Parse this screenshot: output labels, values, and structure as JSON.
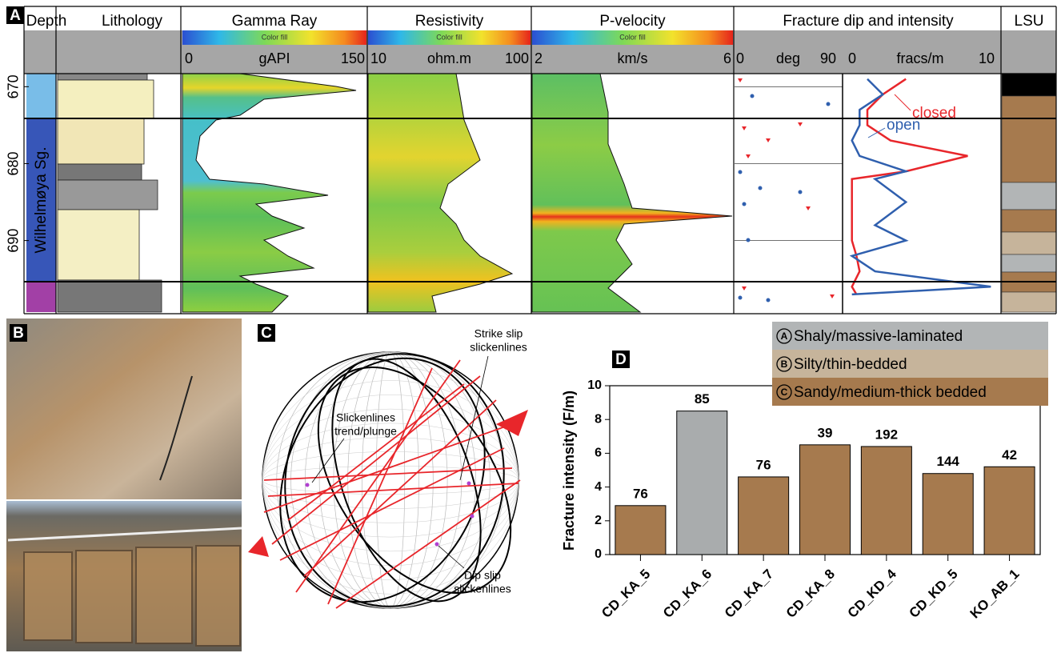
{
  "panel_a": {
    "label": "A",
    "depth_title": "Depth",
    "lithology_title": "Lithology",
    "lsu_title": "LSU",
    "unit": "Wilhelmøya Sg.",
    "depth_lim": [
      668.3,
      699.3
    ],
    "depth_ticks": [
      670,
      680,
      690
    ],
    "tracks": [
      {
        "title": "Gamma Ray",
        "fill_label": "Color fill",
        "scale": [
          0,
          150
        ],
        "unit": "gAPI"
      },
      {
        "title": "Resistivity",
        "fill_label": "Color fill",
        "scale": [
          10,
          100
        ],
        "unit": "ohm.m"
      },
      {
        "title": "P-velocity",
        "fill_label": "Color fill",
        "scale": [
          2,
          6
        ],
        "unit": "km/s"
      }
    ],
    "fracture": {
      "title": "Fracture dip and intensity",
      "dip_scale": [
        0,
        90
      ],
      "dip_unit": "deg",
      "intensity_scale": [
        0,
        10
      ],
      "intensity_unit": "fracs/m",
      "depth": [
        669,
        671,
        673,
        675,
        677,
        679,
        681,
        682,
        685,
        688,
        690,
        692,
        694,
        696,
        697
      ],
      "series": [
        {
          "name": "closed",
          "color": "#e8262b",
          "values": [
            4,
            2.5,
            1.5,
            1.5,
            3,
            8,
            4,
            0.5,
            0.5,
            0.5,
            0.5,
            0.8,
            1,
            0.5,
            0.8
          ]
        },
        {
          "name": "open",
          "color": "#2f5fae",
          "values": [
            1.5,
            2.5,
            1,
            1,
            0.5,
            1,
            4,
            2,
            4,
            2,
            4,
            0.5,
            2,
            9.5,
            0.5
          ]
        }
      ]
    }
  },
  "panel_b": {
    "label": "B"
  },
  "panel_c": {
    "label": "C",
    "strike_slip": [
      "Strike slip",
      "slickenlines"
    ],
    "trend_plunge": [
      "Slickenlines",
      "trend/plunge"
    ],
    "dip_slip": [
      "Dip slip",
      "slickenlines"
    ]
  },
  "chart_data": {
    "type": "bar",
    "label": "D",
    "y_label": "Fracture intensity (F/m)",
    "categories": [
      "CD_KA_5",
      "CD_KA_6",
      "CD_KA_7",
      "CD_KA_8",
      "CD_KD_4",
      "CD_KD_5",
      "KO_AB_1"
    ],
    "values": [
      2.9,
      8.5,
      4.6,
      6.5,
      6.4,
      4.8,
      5.2
    ],
    "colors": [
      "#a67a4e",
      "#a9acad",
      "#a67a4e",
      "#a67a4e",
      "#a67a4e",
      "#a67a4e",
      "#a67a4e"
    ],
    "counts": [
      76,
      85,
      76,
      39,
      192,
      144,
      42
    ],
    "ylim": [
      0,
      10
    ],
    "yticks": [
      0,
      2,
      4,
      6,
      8,
      10
    ],
    "legend": [
      {
        "marker": "A",
        "label": "Shaly/massive-laminated",
        "color": "#b2b5b6"
      },
      {
        "marker": "B",
        "label": "Silty/thin-bedded",
        "color": "#c6b49b"
      },
      {
        "marker": "C",
        "label": "Sandy/medium-thick bedded",
        "color": "#a67a4e"
      }
    ]
  }
}
